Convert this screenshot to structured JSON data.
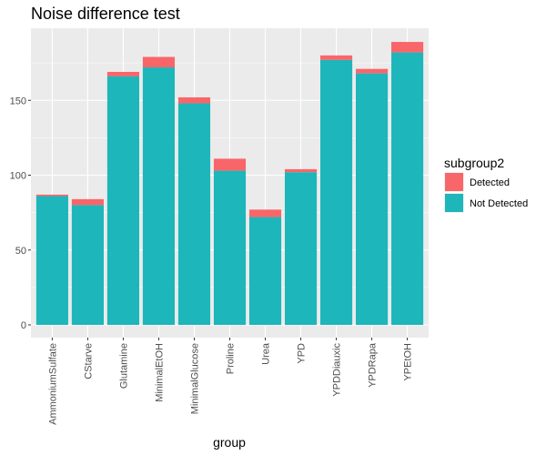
{
  "chart_data": {
    "type": "bar",
    "stacked": true,
    "title": "Noise difference test",
    "xlabel": "group",
    "ylabel": "",
    "ylim": [
      0,
      195
    ],
    "yticks": [
      0,
      50,
      100,
      150
    ],
    "grid": true,
    "legend_position": "right",
    "legend_title": "subgroup2",
    "categories": [
      "AmmoniumSulfate",
      "CStarve",
      "Glutamine",
      "MinimalEtOH",
      "MinimalGlucose",
      "Proline",
      "Urea",
      "YPD",
      "YPDDiauxic",
      "YPDRapa",
      "YPEtOH"
    ],
    "series": [
      {
        "name": "Not Detected",
        "color": "#1DB6BA",
        "values": [
          86,
          80,
          166,
          172,
          148,
          103,
          72,
          102,
          177,
          168,
          182
        ]
      },
      {
        "name": "Detected",
        "color": "#F8666A",
        "values": [
          1,
          4,
          3,
          7,
          4,
          8,
          5,
          2,
          3,
          3,
          7
        ]
      }
    ]
  }
}
